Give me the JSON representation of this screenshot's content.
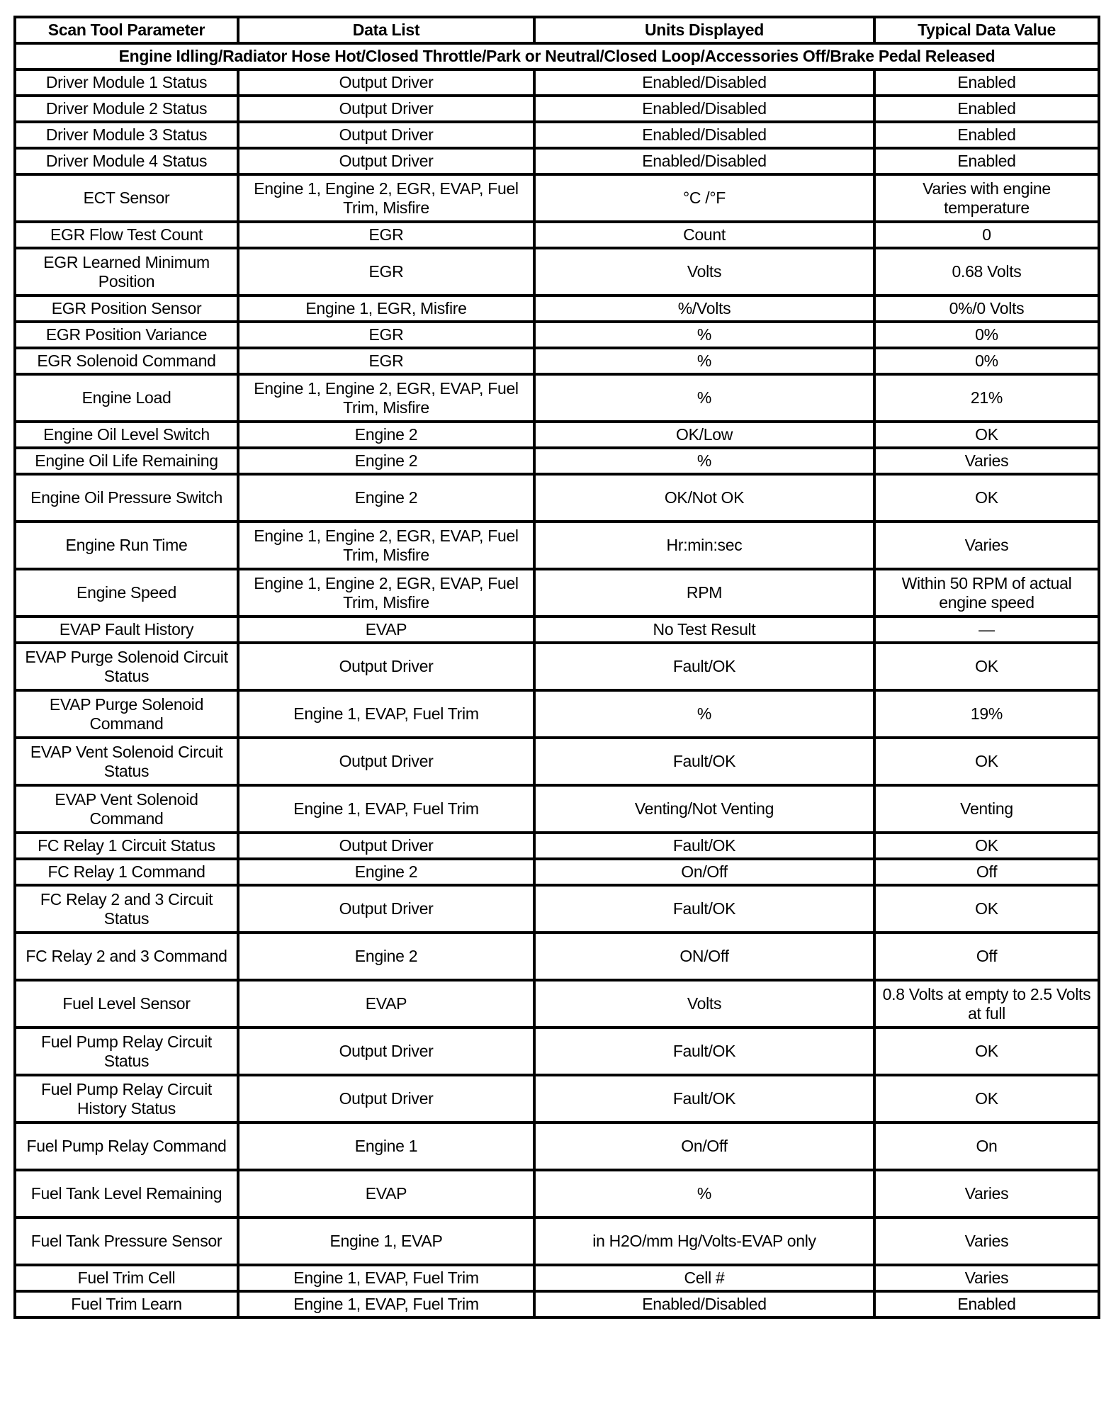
{
  "table": {
    "headers": [
      "Scan Tool Parameter",
      "Data List",
      "Units Displayed",
      "Typical Data Value"
    ],
    "condition": "Engine Idling/Radiator Hose Hot/Closed Throttle/Park or Neutral/Closed Loop/Accessories Off/Brake Pedal Released",
    "rows": [
      [
        "Driver Module 1 Status",
        "Output Driver",
        "Enabled/Disabled",
        "Enabled"
      ],
      [
        "Driver Module 2 Status",
        "Output Driver",
        "Enabled/Disabled",
        "Enabled"
      ],
      [
        "Driver Module 3 Status",
        "Output Driver",
        "Enabled/Disabled",
        "Enabled"
      ],
      [
        "Driver Module 4 Status",
        "Output Driver",
        "Enabled/Disabled",
        "Enabled"
      ],
      [
        "ECT Sensor",
        "Engine 1, Engine 2, EGR, EVAP, Fuel Trim, Misfire",
        "°C /°F",
        "Varies with engine temperature"
      ],
      [
        "EGR Flow Test Count",
        "EGR",
        "Count",
        "0"
      ],
      [
        "EGR Learned Minimum Position",
        "EGR",
        "Volts",
        "0.68 Volts"
      ],
      [
        "EGR Position Sensor",
        "Engine 1, EGR, Misfire",
        "%/Volts",
        "0%/0 Volts"
      ],
      [
        "EGR Position Variance",
        "EGR",
        "%",
        "0%"
      ],
      [
        "EGR Solenoid Command",
        "EGR",
        "%",
        "0%"
      ],
      [
        "Engine Load",
        "Engine 1, Engine 2, EGR, EVAP, Fuel Trim, Misfire",
        "%",
        "21%"
      ],
      [
        "Engine Oil Level Switch",
        "Engine 2",
        "OK/Low",
        "OK"
      ],
      [
        "Engine Oil Life Remaining",
        "Engine 2",
        "%",
        "Varies"
      ],
      [
        "Engine Oil Pressure Switch",
        "Engine 2",
        "OK/Not OK",
        "OK"
      ],
      [
        "Engine Run Time",
        "Engine 1, Engine 2, EGR, EVAP, Fuel Trim, Misfire",
        "Hr:min:sec",
        "Varies"
      ],
      [
        "Engine Speed",
        "Engine 1, Engine 2, EGR, EVAP, Fuel Trim, Misfire",
        "RPM",
        "Within 50 RPM of actual engine speed"
      ],
      [
        "EVAP Fault History",
        "EVAP",
        "No Test Result",
        "—"
      ],
      [
        "EVAP Purge Solenoid Circuit Status",
        "Output Driver",
        "Fault/OK",
        "OK"
      ],
      [
        "EVAP Purge Solenoid Command",
        "Engine 1, EVAP, Fuel Trim",
        "%",
        "19%"
      ],
      [
        "EVAP Vent Solenoid Circuit Status",
        "Output Driver",
        "Fault/OK",
        "OK"
      ],
      [
        "EVAP Vent Solenoid Command",
        "Engine 1, EVAP, Fuel Trim",
        "Venting/Not Venting",
        "Venting"
      ],
      [
        "FC Relay 1 Circuit Status",
        "Output Driver",
        "Fault/OK",
        "OK"
      ],
      [
        "FC Relay 1 Command",
        "Engine 2",
        "On/Off",
        "Off"
      ],
      [
        "FC Relay 2 and 3 Circuit Status",
        "Output Driver",
        "Fault/OK",
        "OK"
      ],
      [
        "FC Relay 2 and 3 Command",
        "Engine 2",
        "ON/Off",
        "Off"
      ],
      [
        "Fuel Level Sensor",
        "EVAP",
        "Volts",
        "0.8 Volts at empty to 2.5 Volts at full"
      ],
      [
        "Fuel Pump Relay Circuit Status",
        "Output Driver",
        "Fault/OK",
        "OK"
      ],
      [
        "Fuel Pump Relay Circuit History Status",
        "Output Driver",
        "Fault/OK",
        "OK"
      ],
      [
        "Fuel Pump Relay Command",
        "Engine 1",
        "On/Off",
        "On"
      ],
      [
        "Fuel Tank Level Remaining",
        "EVAP",
        "%",
        "Varies"
      ],
      [
        "Fuel Tank Pressure Sensor",
        "Engine 1, EVAP",
        "in H2O/mm Hg/Volts-EVAP only",
        "Varies"
      ],
      [
        "Fuel Trim Cell",
        "Engine 1, EVAP, Fuel Trim",
        "Cell #",
        "Varies"
      ],
      [
        "Fuel Trim Learn",
        "Engine 1, EVAP, Fuel Trim",
        "Enabled/Disabled",
        "Enabled"
      ]
    ]
  }
}
